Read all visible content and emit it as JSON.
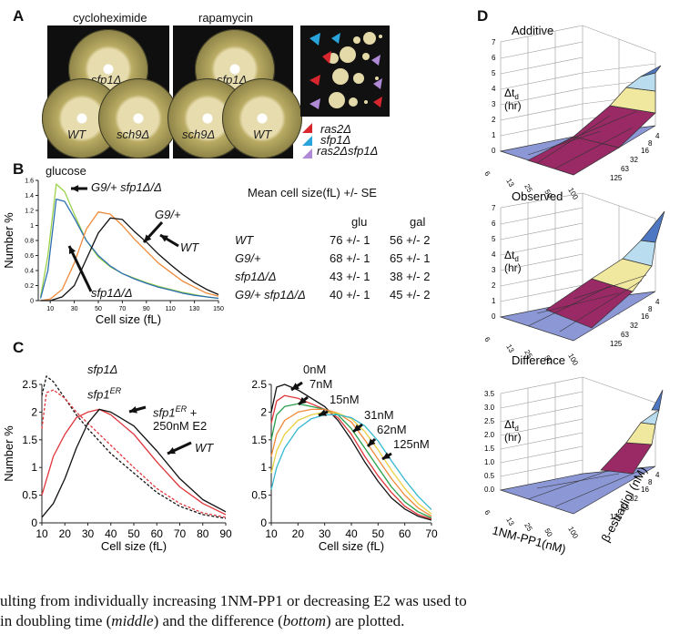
{
  "panel_a": {
    "letter": "A",
    "left_title": "cycloheximide",
    "right_title": "rapamycin",
    "plates_left": [
      "sfp1Δ",
      "WT",
      "sch9Δ"
    ],
    "plates_right": [
      "sfp1Δ",
      "sch9Δ",
      "WT"
    ],
    "legend": [
      "ras2Δ",
      "sfp1Δ",
      "ras2Δsfp1Δ"
    ],
    "legend_colors": [
      "#d9262e",
      "#29a5dc",
      "#b08ad6"
    ]
  },
  "panel_b": {
    "letter": "B",
    "condition": "glucose",
    "label_double": "G9/+ sfp1Δ/Δ",
    "label_g9": "G9/+",
    "label_wt": "WT",
    "label_sfp1": "sfp1Δ/Δ",
    "table_title": "Mean cell size(fL) +/- SE",
    "col_glu": "glu",
    "col_gal": "gal",
    "rows": [
      {
        "strain": "WT",
        "glu": "76 +/- 1",
        "gal": "56 +/- 2"
      },
      {
        "strain": "G9/+",
        "glu": "68 +/- 1",
        "gal": "65 +/- 1"
      },
      {
        "strain": "sfp1Δ/Δ",
        "glu": "43 +/- 1",
        "gal": "38 +/- 2"
      },
      {
        "strain": "G9/+ sfp1Δ/Δ",
        "glu": "40 +/- 1",
        "gal": "45 +/- 2"
      }
    ]
  },
  "panel_c": {
    "letter": "C",
    "label_sfp1": "sfp1Δ",
    "label_sfp1er": "sfp1",
    "label_er_sup": "ER",
    "label_sfp1er_e2_line1": "sfp1",
    "label_sfp1er_e2_line2": "+",
    "label_sfp1er_e2_line3": "250nM E2",
    "label_wt": "WT",
    "right_labels": [
      "0nM",
      "7nM",
      "15nM",
      "31nM",
      "62nM",
      "125nM"
    ]
  },
  "panel_d": {
    "letter": "D",
    "titles": [
      "Additive",
      "Observed",
      "Difference"
    ],
    "zlabel_line1": "Δt",
    "zlabel_sub": "d",
    "zlabel_line2": "(hr)",
    "x_axis_label": "1NM-PP1(nM)",
    "y_axis_label": "β-estradiol (nM)",
    "x_ticks": [
      "0",
      "6",
      "13",
      "25",
      "50",
      "100"
    ],
    "y_ticks": [
      "0",
      "4",
      "8",
      "16",
      "32",
      "63",
      "125"
    ],
    "z_ticks_top": [
      "0",
      "1",
      "2",
      "3",
      "4",
      "5",
      "6",
      "7"
    ],
    "z_ticks_bottom": [
      "0.0",
      "0.5",
      "1.0",
      "1.5",
      "2.0",
      "2.5",
      "3.0",
      "3.5"
    ],
    "surface_colors": [
      "#8c98d6",
      "#9a2a66",
      "#f1e8a0",
      "#b9dcef",
      "#4d77c2"
    ]
  },
  "caption": {
    "line1": "ulting from individually increasing 1NM-PP1 or decreasing E2 was used to",
    "line2_pre": " in doubling time (",
    "line2_middle": "middle",
    "line2_mid": ") and the difference (",
    "line2_bottom": "bottom",
    "line2_post": ") are plotted."
  },
  "chart_data": [
    {
      "type": "line",
      "title": "glucose",
      "xlabel": "Cell size (fL)",
      "ylabel": "Number %",
      "xlim": [
        0,
        150
      ],
      "ylim": [
        0,
        1.6
      ],
      "x_ticks": [
        10,
        30,
        50,
        70,
        90,
        110,
        130,
        150
      ],
      "y_ticks": [
        0,
        0.2,
        0.4,
        0.6,
        0.8,
        1.0,
        1.2,
        1.4,
        1.6
      ],
      "series": [
        {
          "name": "G9/+ sfp1Δ/Δ",
          "color": "#9bd24a",
          "x": [
            2,
            8,
            15,
            22,
            30,
            40,
            50,
            60,
            70,
            80,
            90,
            100,
            110,
            120,
            130,
            140,
            150
          ],
          "values": [
            0.05,
            0.6,
            1.55,
            1.45,
            1.15,
            0.8,
            0.58,
            0.45,
            0.36,
            0.3,
            0.24,
            0.19,
            0.15,
            0.11,
            0.08,
            0.05,
            0.03
          ]
        },
        {
          "name": "sfp1Δ/Δ",
          "color": "#2c6fb0",
          "x": [
            2,
            8,
            15,
            22,
            30,
            40,
            50,
            60,
            70,
            80,
            90,
            100,
            110,
            120,
            130,
            140,
            150
          ],
          "values": [
            0.03,
            0.4,
            1.35,
            1.32,
            1.1,
            0.8,
            0.6,
            0.46,
            0.36,
            0.29,
            0.23,
            0.18,
            0.14,
            0.1,
            0.07,
            0.05,
            0.03
          ]
        },
        {
          "name": "G9/+",
          "color": "#f08a3a",
          "x": [
            2,
            10,
            20,
            30,
            40,
            50,
            60,
            70,
            80,
            90,
            100,
            110,
            120,
            130,
            140,
            150
          ],
          "values": [
            0.0,
            0.02,
            0.15,
            0.5,
            0.95,
            1.18,
            1.15,
            1.0,
            0.82,
            0.66,
            0.5,
            0.38,
            0.26,
            0.18,
            0.1,
            0.06
          ]
        },
        {
          "name": "WT",
          "color": "#111111",
          "x": [
            2,
            10,
            20,
            30,
            40,
            50,
            60,
            70,
            80,
            90,
            100,
            110,
            120,
            130,
            140,
            150
          ],
          "values": [
            0.0,
            0.0,
            0.05,
            0.2,
            0.55,
            0.9,
            1.1,
            1.08,
            0.92,
            0.78,
            0.62,
            0.48,
            0.35,
            0.24,
            0.15,
            0.08
          ]
        }
      ]
    },
    {
      "type": "line",
      "xlabel": "Cell size (fL)",
      "ylabel": "Number %",
      "xlim": [
        10,
        90
      ],
      "ylim": [
        0,
        2.5
      ],
      "x_ticks": [
        10,
        20,
        30,
        40,
        50,
        60,
        70,
        80,
        90
      ],
      "y_ticks": [
        0,
        0.5,
        1,
        1.5,
        2,
        2.5
      ],
      "series": [
        {
          "name": "sfp1Δ",
          "color": "#111111",
          "dashed": true,
          "x": [
            10,
            12,
            15,
            20,
            25,
            30,
            40,
            50,
            60,
            70,
            80,
            90
          ],
          "values": [
            2.3,
            2.65,
            2.55,
            2.25,
            1.95,
            1.7,
            1.25,
            0.9,
            0.55,
            0.3,
            0.15,
            0.08
          ]
        },
        {
          "name": "sfp1ER",
          "color": "#e0343a",
          "dashed": true,
          "x": [
            10,
            12,
            15,
            20,
            25,
            30,
            40,
            50,
            60,
            70,
            80,
            90
          ],
          "values": [
            1.7,
            2.35,
            2.4,
            2.25,
            2.0,
            1.8,
            1.4,
            1.0,
            0.62,
            0.35,
            0.18,
            0.1
          ]
        },
        {
          "name": "sfp1ER + 250nM E2",
          "color": "#e0343a",
          "x": [
            10,
            15,
            20,
            25,
            30,
            35,
            40,
            50,
            60,
            70,
            80,
            90
          ],
          "values": [
            0.5,
            1.2,
            1.6,
            1.9,
            2.0,
            2.05,
            1.95,
            1.6,
            1.1,
            0.65,
            0.35,
            0.15
          ]
        },
        {
          "name": "WT",
          "color": "#111111",
          "x": [
            10,
            15,
            20,
            25,
            30,
            35,
            40,
            50,
            60,
            70,
            80,
            90
          ],
          "values": [
            0.1,
            0.35,
            0.8,
            1.35,
            1.8,
            2.05,
            2.0,
            1.75,
            1.3,
            0.8,
            0.42,
            0.2
          ]
        }
      ]
    },
    {
      "type": "line",
      "xlabel": "Cell size (fL)",
      "xlim": [
        10,
        70
      ],
      "ylim": [
        0,
        2.5
      ],
      "x_ticks": [
        10,
        20,
        30,
        40,
        50,
        60,
        70
      ],
      "y_ticks": [
        0,
        0.5,
        1,
        1.5,
        2,
        2.5
      ],
      "series": [
        {
          "name": "0nM",
          "color": "#111111",
          "x": [
            10,
            12,
            15,
            20,
            25,
            30,
            35,
            40,
            45,
            50,
            55,
            60,
            65,
            70
          ],
          "values": [
            2.0,
            2.45,
            2.5,
            2.4,
            2.25,
            2.1,
            1.85,
            1.5,
            1.1,
            0.75,
            0.45,
            0.25,
            0.12,
            0.05
          ]
        },
        {
          "name": "7nM",
          "color": "#e0343a",
          "x": [
            10,
            12,
            15,
            20,
            25,
            30,
            35,
            40,
            45,
            50,
            55,
            60,
            65,
            70
          ],
          "values": [
            1.8,
            2.2,
            2.3,
            2.25,
            2.15,
            2.05,
            1.9,
            1.6,
            1.2,
            0.85,
            0.55,
            0.3,
            0.15,
            0.07
          ]
        },
        {
          "name": "15nM",
          "color": "#27a04a",
          "x": [
            10,
            12,
            15,
            20,
            25,
            30,
            35,
            40,
            45,
            50,
            55,
            60,
            65,
            70
          ],
          "values": [
            1.5,
            1.95,
            2.1,
            2.15,
            2.1,
            2.05,
            1.95,
            1.7,
            1.35,
            1.0,
            0.65,
            0.38,
            0.2,
            0.09
          ]
        },
        {
          "name": "31nM",
          "color": "#f08a3a",
          "x": [
            10,
            12,
            15,
            20,
            25,
            30,
            35,
            40,
            45,
            50,
            55,
            60,
            65,
            70
          ],
          "values": [
            1.2,
            1.6,
            1.85,
            2.0,
            2.05,
            2.05,
            1.98,
            1.82,
            1.5,
            1.15,
            0.8,
            0.5,
            0.27,
            0.12
          ]
        },
        {
          "name": "62nM",
          "color": "#e8d040",
          "x": [
            10,
            12,
            15,
            20,
            25,
            30,
            35,
            40,
            45,
            50,
            55,
            60,
            65,
            70
          ],
          "values": [
            0.9,
            1.3,
            1.6,
            1.85,
            1.95,
            2.0,
            1.98,
            1.88,
            1.65,
            1.32,
            0.95,
            0.62,
            0.35,
            0.16
          ]
        },
        {
          "name": "125nM",
          "color": "#34b8d0",
          "x": [
            10,
            12,
            15,
            20,
            25,
            30,
            35,
            40,
            45,
            50,
            55,
            60,
            65,
            70
          ],
          "values": [
            0.6,
            1.0,
            1.35,
            1.7,
            1.88,
            1.95,
            1.95,
            1.9,
            1.75,
            1.48,
            1.12,
            0.78,
            0.48,
            0.24
          ]
        }
      ]
    }
  ]
}
